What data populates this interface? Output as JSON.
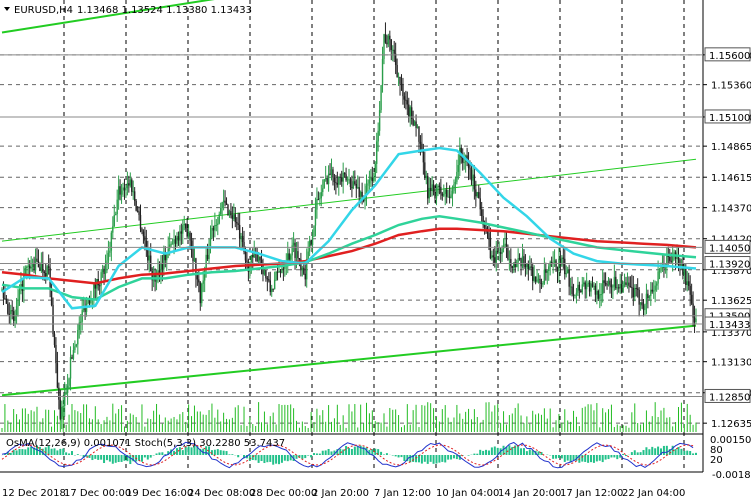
{
  "header": {
    "symbol": "EURUSD,H4",
    "ohlc": "1.13468 1.13524 1.13380 1.13433",
    "menu_icon": "triangle-down-icon"
  },
  "indicator_header": "OsMA(12,26,9) 0.001071  Stoch(5,3,3) 30.2280 53.7437",
  "colors": {
    "background": "#ffffff",
    "bull": "#2a9d4a",
    "bear": "#222222",
    "ema_fast": "#33d6e8",
    "ema_mid": "#2fd39a",
    "ema_slow": "#e02020",
    "channel": "#22cc22",
    "volume": "#22bb22",
    "osma": "#22c18a",
    "stoch_main": "#2233cc",
    "stoch_signal": "#e02020"
  },
  "chart_data": {
    "type": "candlestick",
    "symbol": "EURUSD",
    "timeframe": "H4",
    "y_axis": {
      "ticks": [
        "1.15600",
        "1.15360",
        "1.15100",
        "1.14865",
        "1.14615",
        "1.14370",
        "1.14120",
        "1.13870",
        "1.13625",
        "1.13370",
        "1.13130",
        "1.12880",
        "1.12635"
      ],
      "highlighted": [
        "1.15600",
        "1.15100",
        "1.14050",
        "1.13920",
        "1.13500",
        "1.13433",
        "1.12850"
      ],
      "current_price": "1.13433"
    },
    "x_axis": {
      "labels": [
        "12 Dec 2018",
        "17 Dec 00:00",
        "19 Dec 16:00",
        "24 Dec 08:00",
        "28 Dec 00:00",
        "2 Jan 20:00",
        "7 Jan 12:00",
        "10 Jan 04:00",
        "14 Jan 20:00",
        "17 Jan 12:00",
        "22 Jan 04:00"
      ]
    },
    "price_anchors": [
      [
        0,
        1.137
      ],
      [
        8,
        1.1345
      ],
      [
        16,
        1.1385
      ],
      [
        24,
        1.1392
      ],
      [
        32,
        1.1386
      ],
      [
        40,
        1.1265
      ],
      [
        48,
        1.1318
      ],
      [
        56,
        1.1356
      ],
      [
        64,
        1.1374
      ],
      [
        72,
        1.139
      ],
      [
        80,
        1.145
      ],
      [
        88,
        1.1458
      ],
      [
        96,
        1.142
      ],
      [
        104,
        1.1378
      ],
      [
        112,
        1.1398
      ],
      [
        120,
        1.1415
      ],
      [
        128,
        1.142
      ],
      [
        136,
        1.1366
      ],
      [
        144,
        1.142
      ],
      [
        152,
        1.144
      ],
      [
        160,
        1.1428
      ],
      [
        168,
        1.139
      ],
      [
        176,
        1.14
      ],
      [
        184,
        1.137
      ],
      [
        192,
        1.139
      ],
      [
        200,
        1.1405
      ],
      [
        208,
        1.1385
      ],
      [
        216,
        1.144
      ],
      [
        224,
        1.1465
      ],
      [
        232,
        1.146
      ],
      [
        240,
        1.1458
      ],
      [
        248,
        1.1445
      ],
      [
        256,
        1.1468
      ],
      [
        262,
        1.1575
      ],
      [
        268,
        1.1565
      ],
      [
        276,
        1.152
      ],
      [
        284,
        1.1505
      ],
      [
        292,
        1.145
      ],
      [
        300,
        1.145
      ],
      [
        308,
        1.1445
      ],
      [
        314,
        1.148
      ],
      [
        320,
        1.147
      ],
      [
        328,
        1.144
      ],
      [
        336,
        1.1395
      ],
      [
        344,
        1.1405
      ],
      [
        352,
        1.139
      ],
      [
        360,
        1.1393
      ],
      [
        368,
        1.1375
      ],
      [
        376,
        1.1388
      ],
      [
        384,
        1.1393
      ],
      [
        392,
        1.137
      ],
      [
        400,
        1.1376
      ],
      [
        408,
        1.1368
      ],
      [
        416,
        1.1378
      ],
      [
        424,
        1.1375
      ],
      [
        432,
        1.137
      ],
      [
        440,
        1.136
      ],
      [
        448,
        1.1375
      ],
      [
        456,
        1.1395
      ],
      [
        462,
        1.1398
      ],
      [
        468,
        1.1385
      ],
      [
        476,
        1.1343
      ]
    ],
    "ema_fast": [
      [
        0,
        1.1369
      ],
      [
        16,
        1.1381
      ],
      [
        32,
        1.138
      ],
      [
        48,
        1.1356
      ],
      [
        64,
        1.1358
      ],
      [
        80,
        1.139
      ],
      [
        96,
        1.1405
      ],
      [
        112,
        1.14
      ],
      [
        128,
        1.1405
      ],
      [
        144,
        1.1405
      ],
      [
        160,
        1.1405
      ],
      [
        176,
        1.14
      ],
      [
        192,
        1.1394
      ],
      [
        208,
        1.1392
      ],
      [
        224,
        1.141
      ],
      [
        240,
        1.1435
      ],
      [
        256,
        1.1455
      ],
      [
        272,
        1.148
      ],
      [
        288,
        1.1483
      ],
      [
        300,
        1.1485
      ],
      [
        312,
        1.1483
      ],
      [
        328,
        1.1465
      ],
      [
        344,
        1.1445
      ],
      [
        360,
        1.143
      ],
      [
        376,
        1.1412
      ],
      [
        392,
        1.14
      ],
      [
        408,
        1.1394
      ],
      [
        424,
        1.1392
      ],
      [
        440,
        1.1391
      ],
      [
        456,
        1.139
      ],
      [
        476,
        1.1388
      ]
    ],
    "ema_mid": [
      [
        0,
        1.1375
      ],
      [
        16,
        1.1372
      ],
      [
        32,
        1.1372
      ],
      [
        48,
        1.1365
      ],
      [
        64,
        1.1363
      ],
      [
        80,
        1.1373
      ],
      [
        96,
        1.138
      ],
      [
        112,
        1.138
      ],
      [
        128,
        1.1383
      ],
      [
        144,
        1.1385
      ],
      [
        160,
        1.1386
      ],
      [
        176,
        1.1388
      ],
      [
        192,
        1.139
      ],
      [
        208,
        1.1393
      ],
      [
        224,
        1.14
      ],
      [
        240,
        1.1408
      ],
      [
        256,
        1.1415
      ],
      [
        272,
        1.1423
      ],
      [
        288,
        1.1428
      ],
      [
        300,
        1.143
      ],
      [
        312,
        1.1428
      ],
      [
        328,
        1.1425
      ],
      [
        344,
        1.1421
      ],
      [
        360,
        1.1417
      ],
      [
        376,
        1.1413
      ],
      [
        392,
        1.1409
      ],
      [
        408,
        1.1405
      ],
      [
        424,
        1.1403
      ],
      [
        440,
        1.1401
      ],
      [
        456,
        1.1399
      ],
      [
        476,
        1.1397
      ]
    ],
    "ema_slow": [
      [
        0,
        1.1385
      ],
      [
        16,
        1.1383
      ],
      [
        32,
        1.138
      ],
      [
        48,
        1.1378
      ],
      [
        64,
        1.1376
      ],
      [
        80,
        1.138
      ],
      [
        96,
        1.1383
      ],
      [
        112,
        1.1384
      ],
      [
        128,
        1.1386
      ],
      [
        144,
        1.1388
      ],
      [
        160,
        1.139
      ],
      [
        176,
        1.1391
      ],
      [
        192,
        1.1392
      ],
      [
        208,
        1.1394
      ],
      [
        224,
        1.1398
      ],
      [
        240,
        1.1402
      ],
      [
        256,
        1.1408
      ],
      [
        272,
        1.1415
      ],
      [
        288,
        1.1418
      ],
      [
        300,
        1.142
      ],
      [
        312,
        1.142
      ],
      [
        328,
        1.1419
      ],
      [
        344,
        1.1418
      ],
      [
        360,
        1.1416
      ],
      [
        376,
        1.1414
      ],
      [
        392,
        1.1412
      ],
      [
        408,
        1.141
      ],
      [
        424,
        1.1409
      ],
      [
        440,
        1.1408
      ],
      [
        456,
        1.1407
      ],
      [
        476,
        1.1405
      ]
    ],
    "channel_lines": [
      {
        "role": "upper",
        "points": [
          [
            0,
            1.1578
          ],
          [
            476,
            1.1666
          ]
        ]
      },
      {
        "role": "middle",
        "points": [
          [
            0,
            1.141
          ],
          [
            476,
            1.1476
          ]
        ]
      },
      {
        "role": "lower",
        "points": [
          [
            0,
            1.1286
          ],
          [
            476,
            1.1342
          ]
        ]
      }
    ]
  }
}
